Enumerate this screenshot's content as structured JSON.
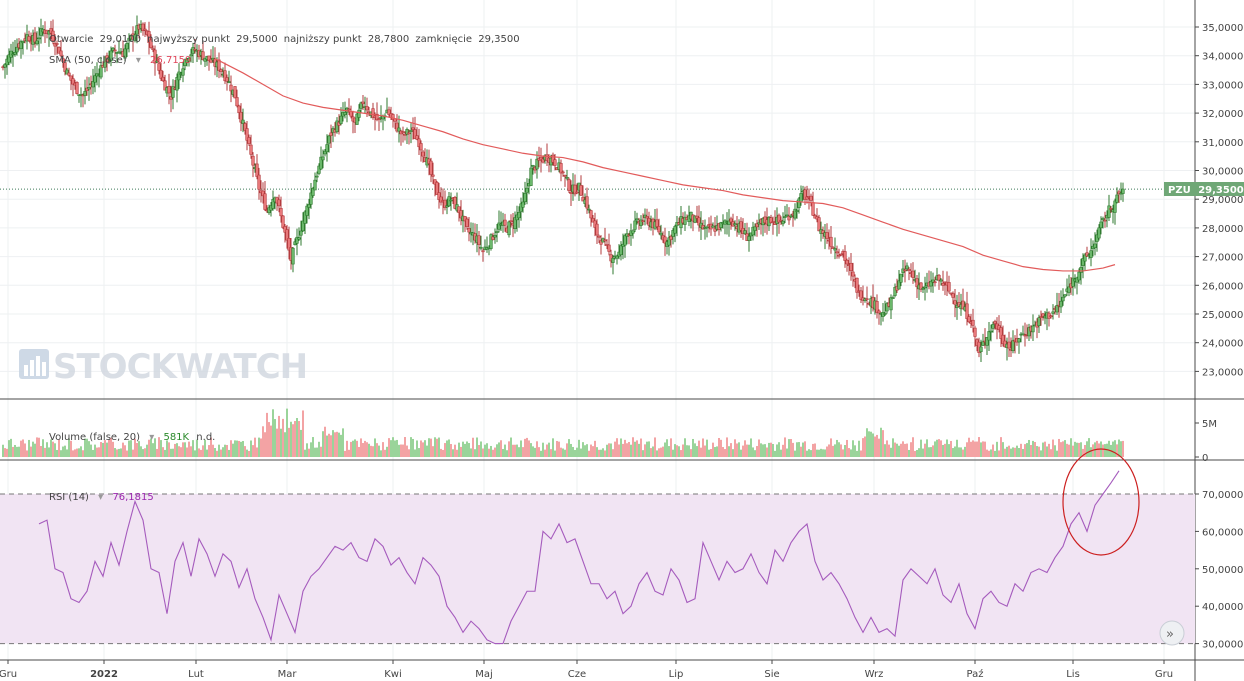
{
  "chart_data": {
    "type": "candlestick",
    "ticker": "PZU",
    "last_price_label": "29,3500",
    "last_price": 29.35,
    "header": {
      "open_label": "Otwarcie",
      "open": "29,0100",
      "high_label": "najwyższy punkt",
      "high": "29,5000",
      "low_label": "najniższy punkt",
      "low": "28,7800",
      "close_label": "zamknięcie",
      "close": "29,3500"
    },
    "sma_label": "SMA (50, close)",
    "sma_value": "26,7159",
    "volume_label": "Volume (false, 20)",
    "volume_value": "581K",
    "volume_extra": "n.d.",
    "rsi_label": "RSI (14)",
    "rsi_value": "76,1815",
    "watermark": "STOCKWATCH",
    "price_ticks": [
      "35,0000",
      "34,0000",
      "33,0000",
      "32,0000",
      "31,0000",
      "30,0000",
      "29,0000",
      "28,0000",
      "27,0000",
      "26,0000",
      "25,0000",
      "24,0000",
      "23,0000"
    ],
    "price_tick_values": [
      35,
      34,
      33,
      32,
      31,
      30,
      29,
      28,
      27,
      26,
      25,
      24,
      23
    ],
    "volume_ticks": [
      "5M",
      "0"
    ],
    "rsi_ticks": [
      "70,0000",
      "60,0000",
      "50,0000",
      "40,0000",
      "30,0000"
    ],
    "rsi_tick_values": [
      70,
      60,
      50,
      40,
      30
    ],
    "rsi_bands": [
      30,
      70
    ],
    "x_labels": [
      "Gru",
      "2022",
      "Lut",
      "Mar",
      "Kwi",
      "Maj",
      "Cze",
      "Lip",
      "Sie",
      "Wrz",
      "Paź",
      "Lis",
      "Gru"
    ],
    "price_path": [
      [
        0,
        33.6
      ],
      [
        4,
        34.1
      ],
      [
        8,
        34.4
      ],
      [
        12,
        34.7
      ],
      [
        16,
        34.5
      ],
      [
        20,
        34.9
      ],
      [
        24,
        34.8
      ],
      [
        28,
        34.2
      ],
      [
        32,
        33.4
      ],
      [
        36,
        32.9
      ],
      [
        40,
        32.6
      ],
      [
        44,
        33.0
      ],
      [
        48,
        33.5
      ],
      [
        52,
        33.9
      ],
      [
        56,
        34.2
      ],
      [
        60,
        34.1
      ],
      [
        64,
        34.6
      ],
      [
        68,
        35.0
      ],
      [
        72,
        34.7
      ],
      [
        76,
        33.9
      ],
      [
        80,
        33.1
      ],
      [
        84,
        32.6
      ],
      [
        88,
        33.4
      ],
      [
        92,
        34.0
      ],
      [
        96,
        34.2
      ],
      [
        100,
        34.0
      ],
      [
        104,
        33.8
      ],
      [
        108,
        33.6
      ],
      [
        112,
        33.2
      ],
      [
        116,
        32.6
      ],
      [
        120,
        31.6
      ],
      [
        124,
        30.5
      ],
      [
        128,
        29.4
      ],
      [
        132,
        28.6
      ],
      [
        136,
        29.2
      ],
      [
        140,
        28.1
      ],
      [
        144,
        26.9
      ],
      [
        148,
        27.8
      ],
      [
        152,
        28.7
      ],
      [
        156,
        29.7
      ],
      [
        160,
        30.5
      ],
      [
        164,
        31.3
      ],
      [
        168,
        31.7
      ],
      [
        172,
        32.1
      ],
      [
        176,
        31.6
      ],
      [
        180,
        32.4
      ],
      [
        184,
        32.0
      ],
      [
        188,
        31.7
      ],
      [
        192,
        32.1
      ],
      [
        196,
        31.6
      ],
      [
        200,
        31.2
      ],
      [
        204,
        31.4
      ],
      [
        208,
        31.0
      ],
      [
        212,
        30.3
      ],
      [
        216,
        29.4
      ],
      [
        220,
        28.8
      ],
      [
        224,
        29.0
      ],
      [
        228,
        28.6
      ],
      [
        232,
        27.9
      ],
      [
        236,
        27.7
      ],
      [
        240,
        27.2
      ],
      [
        244,
        27.6
      ],
      [
        248,
        28.1
      ],
      [
        252,
        28.0
      ],
      [
        256,
        28.3
      ],
      [
        260,
        28.8
      ],
      [
        264,
        30.0
      ],
      [
        268,
        30.3
      ],
      [
        272,
        30.5
      ],
      [
        276,
        30.3
      ],
      [
        280,
        29.9
      ],
      [
        284,
        29.3
      ],
      [
        288,
        29.4
      ],
      [
        292,
        28.8
      ],
      [
        296,
        27.9
      ],
      [
        300,
        27.5
      ],
      [
        304,
        27.0
      ],
      [
        308,
        27.1
      ],
      [
        312,
        27.8
      ],
      [
        316,
        28.1
      ],
      [
        320,
        28.3
      ],
      [
        324,
        28.2
      ],
      [
        328,
        27.9
      ],
      [
        332,
        27.5
      ],
      [
        336,
        28.0
      ],
      [
        340,
        28.3
      ],
      [
        344,
        28.4
      ],
      [
        348,
        28.1
      ],
      [
        352,
        27.9
      ],
      [
        356,
        28.0
      ],
      [
        360,
        28.1
      ],
      [
        364,
        28.3
      ],
      [
        368,
        28.0
      ],
      [
        372,
        27.7
      ],
      [
        376,
        27.9
      ],
      [
        380,
        28.2
      ],
      [
        384,
        28.3
      ],
      [
        388,
        28.2
      ],
      [
        392,
        28.4
      ],
      [
        396,
        28.6
      ],
      [
        400,
        29.2
      ],
      [
        404,
        28.8
      ],
      [
        408,
        28.0
      ],
      [
        412,
        27.7
      ],
      [
        416,
        27.3
      ],
      [
        420,
        27.1
      ],
      [
        424,
        26.4
      ],
      [
        428,
        25.7
      ],
      [
        432,
        25.6
      ],
      [
        436,
        25.3
      ],
      [
        440,
        25.0
      ],
      [
        444,
        25.4
      ],
      [
        448,
        26.2
      ],
      [
        452,
        26.6
      ],
      [
        456,
        26.2
      ],
      [
        460,
        25.8
      ],
      [
        464,
        26.1
      ],
      [
        468,
        26.2
      ],
      [
        472,
        25.9
      ],
      [
        476,
        25.5
      ],
      [
        480,
        25.2
      ],
      [
        484,
        24.8
      ],
      [
        488,
        23.6
      ],
      [
        492,
        24.3
      ],
      [
        496,
        24.7
      ],
      [
        500,
        24.1
      ],
      [
        504,
        23.8
      ],
      [
        508,
        24.2
      ],
      [
        512,
        24.4
      ],
      [
        516,
        24.6
      ],
      [
        520,
        24.9
      ],
      [
        524,
        25.0
      ],
      [
        528,
        25.3
      ],
      [
        532,
        25.8
      ],
      [
        536,
        26.3
      ],
      [
        540,
        26.8
      ],
      [
        544,
        27.2
      ],
      [
        548,
        27.9
      ],
      [
        552,
        28.5
      ],
      [
        556,
        28.9
      ],
      [
        560,
        29.35
      ]
    ],
    "sma_path": [
      [
        106,
        33.9
      ],
      [
        120,
        33.4
      ],
      [
        130,
        33.0
      ],
      [
        140,
        32.6
      ],
      [
        150,
        32.35
      ],
      [
        160,
        32.2
      ],
      [
        170,
        32.1
      ],
      [
        180,
        32.0
      ],
      [
        190,
        31.9
      ],
      [
        200,
        31.75
      ],
      [
        210,
        31.55
      ],
      [
        220,
        31.35
      ],
      [
        230,
        31.1
      ],
      [
        240,
        30.9
      ],
      [
        250,
        30.75
      ],
      [
        260,
        30.6
      ],
      [
        270,
        30.5
      ],
      [
        280,
        30.45
      ],
      [
        290,
        30.3
      ],
      [
        300,
        30.1
      ],
      [
        310,
        29.95
      ],
      [
        320,
        29.8
      ],
      [
        330,
        29.65
      ],
      [
        340,
        29.5
      ],
      [
        350,
        29.4
      ],
      [
        360,
        29.3
      ],
      [
        370,
        29.15
      ],
      [
        380,
        29.05
      ],
      [
        390,
        28.95
      ],
      [
        400,
        28.9
      ],
      [
        410,
        28.85
      ],
      [
        420,
        28.7
      ],
      [
        430,
        28.45
      ],
      [
        440,
        28.2
      ],
      [
        450,
        27.95
      ],
      [
        460,
        27.75
      ],
      [
        470,
        27.55
      ],
      [
        480,
        27.35
      ],
      [
        490,
        27.05
      ],
      [
        500,
        26.85
      ],
      [
        510,
        26.65
      ],
      [
        520,
        26.55
      ],
      [
        530,
        26.5
      ],
      [
        540,
        26.5
      ],
      [
        550,
        26.6
      ],
      [
        556,
        26.72
      ]
    ],
    "rsi_path": [
      [
        18,
        62
      ],
      [
        22,
        63
      ],
      [
        26,
        50
      ],
      [
        30,
        49
      ],
      [
        34,
        42
      ],
      [
        38,
        41
      ],
      [
        42,
        44
      ],
      [
        46,
        52
      ],
      [
        50,
        48
      ],
      [
        54,
        57
      ],
      [
        58,
        51
      ],
      [
        62,
        60
      ],
      [
        66,
        68
      ],
      [
        70,
        63
      ],
      [
        74,
        50
      ],
      [
        78,
        49
      ],
      [
        82,
        38
      ],
      [
        86,
        52
      ],
      [
        90,
        57
      ],
      [
        94,
        48
      ],
      [
        98,
        58
      ],
      [
        102,
        54
      ],
      [
        106,
        48
      ],
      [
        110,
        54
      ],
      [
        114,
        52
      ],
      [
        118,
        45
      ],
      [
        122,
        50
      ],
      [
        126,
        42
      ],
      [
        130,
        37
      ],
      [
        134,
        31
      ],
      [
        138,
        43
      ],
      [
        142,
        38
      ],
      [
        146,
        33
      ],
      [
        150,
        44
      ],
      [
        154,
        48
      ],
      [
        158,
        50
      ],
      [
        162,
        53
      ],
      [
        166,
        56
      ],
      [
        170,
        55
      ],
      [
        174,
        57
      ],
      [
        178,
        53
      ],
      [
        182,
        52
      ],
      [
        186,
        58
      ],
      [
        190,
        56
      ],
      [
        194,
        51
      ],
      [
        198,
        53
      ],
      [
        202,
        49
      ],
      [
        206,
        46
      ],
      [
        210,
        53
      ],
      [
        214,
        51
      ],
      [
        218,
        48
      ],
      [
        222,
        40
      ],
      [
        226,
        37
      ],
      [
        230,
        33
      ],
      [
        234,
        36
      ],
      [
        238,
        34
      ],
      [
        242,
        31
      ],
      [
        246,
        30
      ],
      [
        250,
        30
      ],
      [
        254,
        36
      ],
      [
        258,
        40
      ],
      [
        262,
        44
      ],
      [
        266,
        44
      ],
      [
        270,
        60
      ],
      [
        274,
        58
      ],
      [
        278,
        62
      ],
      [
        282,
        57
      ],
      [
        286,
        58
      ],
      [
        290,
        52
      ],
      [
        294,
        46
      ],
      [
        298,
        46
      ],
      [
        302,
        42
      ],
      [
        306,
        44
      ],
      [
        310,
        38
      ],
      [
        314,
        40
      ],
      [
        318,
        46
      ],
      [
        322,
        49
      ],
      [
        326,
        44
      ],
      [
        330,
        43
      ],
      [
        334,
        50
      ],
      [
        338,
        47
      ],
      [
        342,
        41
      ],
      [
        346,
        42
      ],
      [
        350,
        57
      ],
      [
        354,
        52
      ],
      [
        358,
        47
      ],
      [
        362,
        52
      ],
      [
        366,
        49
      ],
      [
        370,
        50
      ],
      [
        374,
        54
      ],
      [
        378,
        49
      ],
      [
        382,
        46
      ],
      [
        386,
        55
      ],
      [
        390,
        52
      ],
      [
        394,
        57
      ],
      [
        398,
        60
      ],
      [
        402,
        62
      ],
      [
        406,
        52
      ],
      [
        410,
        47
      ],
      [
        414,
        49
      ],
      [
        418,
        46
      ],
      [
        422,
        42
      ],
      [
        426,
        37
      ],
      [
        430,
        33
      ],
      [
        434,
        37
      ],
      [
        438,
        33
      ],
      [
        442,
        34
      ],
      [
        446,
        32
      ],
      [
        450,
        47
      ],
      [
        454,
        50
      ],
      [
        458,
        48
      ],
      [
        462,
        46
      ],
      [
        466,
        50
      ],
      [
        470,
        43
      ],
      [
        474,
        41
      ],
      [
        478,
        46
      ],
      [
        482,
        38
      ],
      [
        486,
        34
      ],
      [
        490,
        42
      ],
      [
        494,
        44
      ],
      [
        498,
        41
      ],
      [
        502,
        40
      ],
      [
        506,
        46
      ],
      [
        510,
        44
      ],
      [
        514,
        49
      ],
      [
        518,
        50
      ],
      [
        522,
        49
      ],
      [
        526,
        53
      ],
      [
        530,
        56
      ],
      [
        534,
        62
      ],
      [
        538,
        65
      ],
      [
        542,
        60
      ],
      [
        546,
        67
      ],
      [
        550,
        70
      ],
      [
        554,
        73
      ],
      [
        558,
        76.2
      ]
    ],
    "circle_annotation": true
  }
}
